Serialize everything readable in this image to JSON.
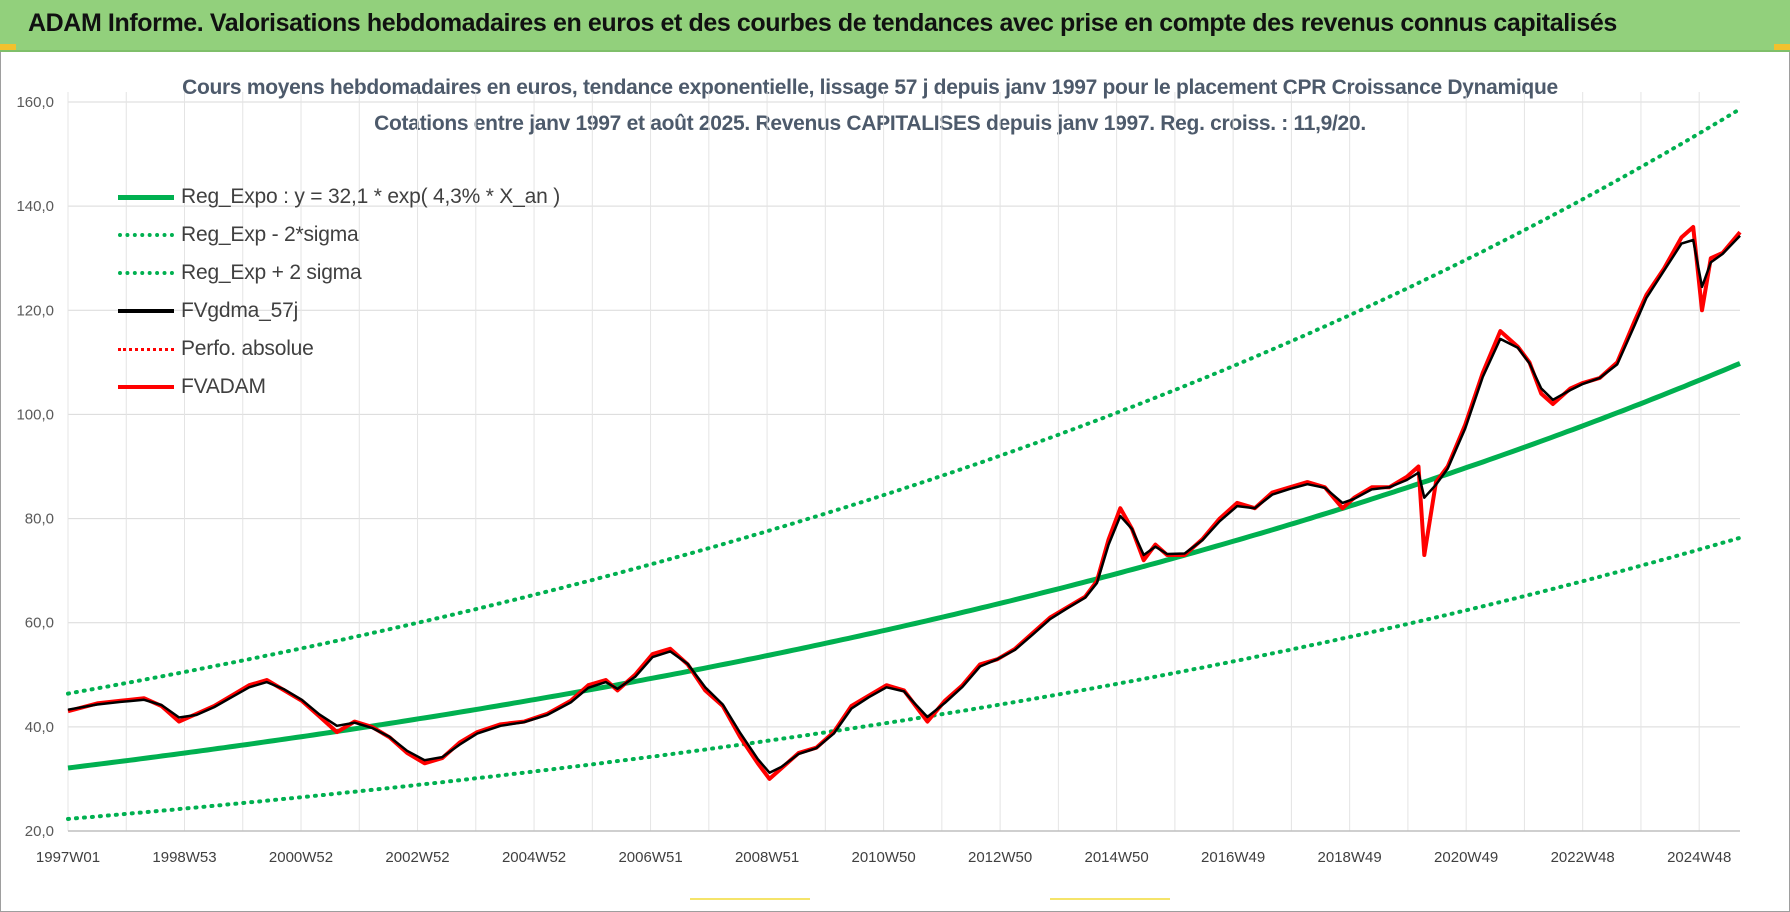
{
  "header": {
    "title": "ADAM Informe. Valorisations hebdomadaires en euros et des courbes de tendances avec prise en compte des revenus connus capitalisés"
  },
  "colors": {
    "banner": "#92d07c",
    "trend_green": "#00b050",
    "price_red": "#ff0000",
    "smooth_black": "#000000",
    "grid": "#d9d9d9"
  },
  "chart_data": {
    "type": "line",
    "title": "Cours moyens hebdomadaires en euros, tendance exponentielle, lissage 57 j depuis janv 1997 pour le placement CPR Croissance Dynamique",
    "subtitle": "Cotations entre janv 1997 et août 2025.  Revenus CAPITALISES  depuis janv 1997. Reg.  croiss. : 11,9/20.",
    "xlabel": "",
    "ylabel": "",
    "ylim": [
      20,
      160
    ],
    "y_ticks": [
      "20,0",
      "40,0",
      "60,0",
      "80,0",
      "100,0",
      "120,0",
      "140,0",
      "160,0"
    ],
    "x_ticks": [
      "1997W01",
      "1998W53",
      "2000W52",
      "2002W52",
      "2004W52",
      "2006W51",
      "2008W51",
      "2010W50",
      "2012W50",
      "2014W50",
      "2016W49",
      "2018W49",
      "2020W49",
      "2022W48",
      "2024W48"
    ],
    "x_range_years": [
      1997.0,
      2025.6
    ],
    "grid": true,
    "legend_position": "top-left",
    "legend": [
      {
        "label": "Reg_Expo : y = 32,1 * exp( 4,3% *  X_an )",
        "style": "solid",
        "color": "#00b050"
      },
      {
        "label": "Reg_Exp - 2*sigma",
        "style": "dotted",
        "color": "#00b050"
      },
      {
        "label": "Reg_Exp + 2 sigma",
        "style": "dotted",
        "color": "#00b050"
      },
      {
        "label": "FVgdma_57j",
        "style": "solid",
        "color": "#000000"
      },
      {
        "label": "Perfo. absolue",
        "style": "dotted",
        "color": "#ff0000"
      },
      {
        "label": "FVADAM",
        "style": "solid",
        "color": "#ff0000"
      }
    ],
    "regression": {
      "a": 32.1,
      "rate": 0.043,
      "lower_factor": 0.695,
      "upper_factor": 1.445
    },
    "series": [
      {
        "name": "FVADAM",
        "x": [
          1997.0,
          1997.5,
          1997.9,
          1998.3,
          1998.6,
          1998.9,
          1999.2,
          1999.5,
          1999.8,
          2000.1,
          2000.4,
          2000.7,
          2001.0,
          2001.3,
          2001.6,
          2001.9,
          2002.2,
          2002.5,
          2002.8,
          2003.1,
          2003.4,
          2003.7,
          2004.0,
          2004.4,
          2004.8,
          2005.2,
          2005.6,
          2005.9,
          2006.2,
          2006.4,
          2006.7,
          2007.0,
          2007.3,
          2007.6,
          2007.9,
          2008.2,
          2008.5,
          2008.8,
          2009.0,
          2009.2,
          2009.5,
          2009.8,
          2010.1,
          2010.4,
          2010.7,
          2011.0,
          2011.3,
          2011.5,
          2011.7,
          2012.0,
          2012.3,
          2012.6,
          2012.9,
          2013.2,
          2013.5,
          2013.8,
          2014.1,
          2014.4,
          2014.6,
          2014.8,
          2015.0,
          2015.2,
          2015.4,
          2015.6,
          2015.8,
          2016.1,
          2016.4,
          2016.7,
          2017.0,
          2017.3,
          2017.6,
          2017.9,
          2018.2,
          2018.5,
          2018.8,
          2019.0,
          2019.3,
          2019.6,
          2019.9,
          2020.1,
          2020.2,
          2020.4,
          2020.6,
          2020.9,
          2021.2,
          2021.5,
          2021.8,
          2022.0,
          2022.2,
          2022.4,
          2022.7,
          2022.9,
          2023.2,
          2023.5,
          2023.8,
          2024.0,
          2024.3,
          2024.6,
          2024.8,
          2024.95,
          2025.1,
          2025.3,
          2025.6
        ],
        "values": [
          43,
          44.5,
          45,
          45.5,
          44,
          41,
          42.5,
          44,
          46,
          48,
          49,
          47,
          45,
          42,
          39,
          41,
          40,
          38,
          35,
          33,
          34,
          37,
          39,
          40.5,
          41,
          42.5,
          45,
          48,
          49,
          47,
          50,
          54,
          55,
          52,
          47,
          44,
          38,
          33,
          30,
          32,
          35,
          36,
          39,
          44,
          46,
          48,
          47,
          44,
          41,
          45,
          48,
          52,
          53,
          55,
          58,
          61,
          63,
          65,
          68,
          76,
          82,
          78,
          72,
          75,
          73,
          73,
          76,
          80,
          83,
          82,
          85,
          86,
          87,
          86,
          82,
          84,
          86,
          86,
          88,
          90,
          73,
          87,
          90,
          98,
          108,
          116,
          113,
          110,
          104,
          102,
          105,
          106,
          107,
          110,
          118,
          123,
          128,
          134,
          136,
          120,
          130,
          131,
          135
        ]
      },
      {
        "name": "FVgdma_57j",
        "x": [
          1997.0,
          1997.5,
          1997.9,
          1998.3,
          1998.6,
          1998.9,
          1999.2,
          1999.5,
          1999.8,
          2000.1,
          2000.4,
          2000.7,
          2001.0,
          2001.3,
          2001.6,
          2001.9,
          2002.2,
          2002.5,
          2002.8,
          2003.1,
          2003.4,
          2003.7,
          2004.0,
          2004.4,
          2004.8,
          2005.2,
          2005.6,
          2005.9,
          2006.2,
          2006.4,
          2006.7,
          2007.0,
          2007.3,
          2007.6,
          2007.9,
          2008.2,
          2008.5,
          2008.8,
          2009.0,
          2009.2,
          2009.5,
          2009.8,
          2010.1,
          2010.4,
          2010.7,
          2011.0,
          2011.3,
          2011.5,
          2011.7,
          2012.0,
          2012.3,
          2012.6,
          2012.9,
          2013.2,
          2013.5,
          2013.8,
          2014.1,
          2014.4,
          2014.6,
          2014.8,
          2015.0,
          2015.2,
          2015.4,
          2015.6,
          2015.8,
          2016.1,
          2016.4,
          2016.7,
          2017.0,
          2017.3,
          2017.6,
          2017.9,
          2018.2,
          2018.5,
          2018.8,
          2019.0,
          2019.3,
          2019.6,
          2019.9,
          2020.1,
          2020.2,
          2020.4,
          2020.6,
          2020.9,
          2021.2,
          2021.5,
          2021.8,
          2022.0,
          2022.2,
          2022.4,
          2022.7,
          2022.9,
          2023.2,
          2023.5,
          2023.8,
          2024.0,
          2024.3,
          2024.6,
          2024.8,
          2024.95,
          2025.1,
          2025.3,
          2025.6
        ],
        "values": [
          43.3,
          44.3,
          44.8,
          45.2,
          44.2,
          41.8,
          42.3,
          43.8,
          45.7,
          47.6,
          48.6,
          47.2,
          45.2,
          42.4,
          40.2,
          40.8,
          39.8,
          38.1,
          35.4,
          33.6,
          34.2,
          36.6,
          38.7,
          40.2,
          40.9,
          42.3,
          44.7,
          47.5,
          48.6,
          47.3,
          49.6,
          53.4,
          54.5,
          52.1,
          47.6,
          44.3,
          38.8,
          33.8,
          31.2,
          32.3,
          34.8,
          35.9,
          38.7,
          43.5,
          45.7,
          47.6,
          46.8,
          44.3,
          41.9,
          44.6,
          47.7,
          51.6,
          53,
          54.8,
          57.7,
          60.7,
          62.8,
          64.8,
          67.6,
          75,
          80.5,
          78,
          73,
          74.6,
          73.2,
          73.3,
          75.8,
          79.5,
          82.4,
          82,
          84.6,
          85.7,
          86.6,
          85.9,
          83,
          83.8,
          85.6,
          86,
          87.4,
          88.8,
          84,
          86.5,
          89.6,
          97.3,
          107.2,
          114.5,
          112.8,
          109.8,
          105,
          102.8,
          104.7,
          105.8,
          107,
          109.6,
          117.2,
          122.4,
          127.6,
          132.8,
          133.5,
          124.5,
          129.2,
          130.8,
          134.3
        ]
      }
    ]
  }
}
